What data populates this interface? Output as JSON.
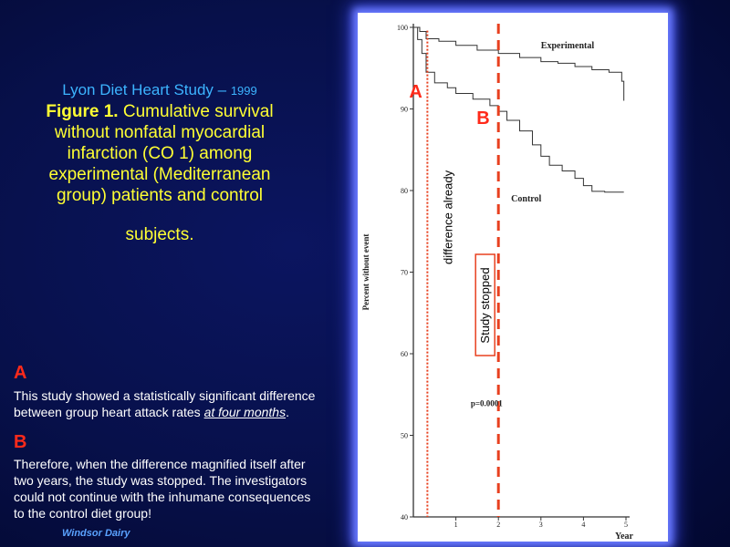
{
  "slide": {
    "study": "Lyon Diet Heart Study – ",
    "year": "1999",
    "figure_label": "Figure 1.",
    "figure_caption_lines": [
      " Cumulative survival",
      "without nonfatal myocardial",
      "infarction (CO 1) among",
      "experimental (Mediterranean",
      "group) patients and control"
    ],
    "figure_caption_last": "subjects.",
    "note_a_letter": "A",
    "note_a_line1": "This study showed a statistically significant difference",
    "note_a_line2_pre": "between group heart attack rates ",
    "note_a_line2_em": "at four months",
    "note_a_line2_post": ".",
    "note_b_letter": "B",
    "note_b_lines": [
      "Therefore, when the difference magnified itself after",
      "two years, the study was stopped. The investigators",
      "could not continue with the inhumane consequences",
      "to the control diet group!"
    ],
    "footer": "Windsor Dairy",
    "colors": {
      "background": "#07104a",
      "title_blue": "#3cb4ff",
      "caption_yellow": "#ffff33",
      "marker_red": "#ff2a1a",
      "annotation_red": "#e8401f"
    }
  },
  "chart_data": {
    "type": "line",
    "xlabel": "Year",
    "ylabel": "Percent without event",
    "xlim": [
      0,
      5
    ],
    "ylim": [
      40,
      100
    ],
    "x_ticks": [
      1,
      2,
      3,
      4,
      5
    ],
    "y_ticks": [
      40,
      50,
      60,
      70,
      80,
      90,
      100
    ],
    "series": [
      {
        "name": "Experimental",
        "x": [
          0,
          0.15,
          0.3,
          0.6,
          1.0,
          1.5,
          2.0,
          2.5,
          3.0,
          3.4,
          3.8,
          4.2,
          4.6,
          4.9,
          4.95
        ],
        "y": [
          100,
          99.5,
          98.6,
          98.3,
          97.8,
          97.2,
          96.8,
          96.3,
          95.8,
          95.6,
          95.2,
          94.8,
          94.5,
          93.4,
          91.0
        ]
      },
      {
        "name": "Control",
        "x": [
          0,
          0.1,
          0.2,
          0.3,
          0.5,
          0.8,
          1.0,
          1.4,
          1.8,
          2.0,
          2.2,
          2.5,
          2.8,
          3.0,
          3.2,
          3.5,
          3.8,
          4.0,
          4.2,
          4.5,
          4.95
        ],
        "y": [
          100,
          98.5,
          96.8,
          94.5,
          93.2,
          92.6,
          91.9,
          91.2,
          90.4,
          89.7,
          88.6,
          87.3,
          85.6,
          84.2,
          83.1,
          82.4,
          81.5,
          80.6,
          79.9,
          79.8,
          79.8
        ]
      }
    ],
    "annotations": {
      "p_value": "p=0.0001",
      "marker_a": {
        "label": "A",
        "x": 0.33,
        "text": "difference already"
      },
      "marker_b": {
        "label": "B",
        "x": 2.0,
        "text": "Study stopped"
      }
    }
  }
}
